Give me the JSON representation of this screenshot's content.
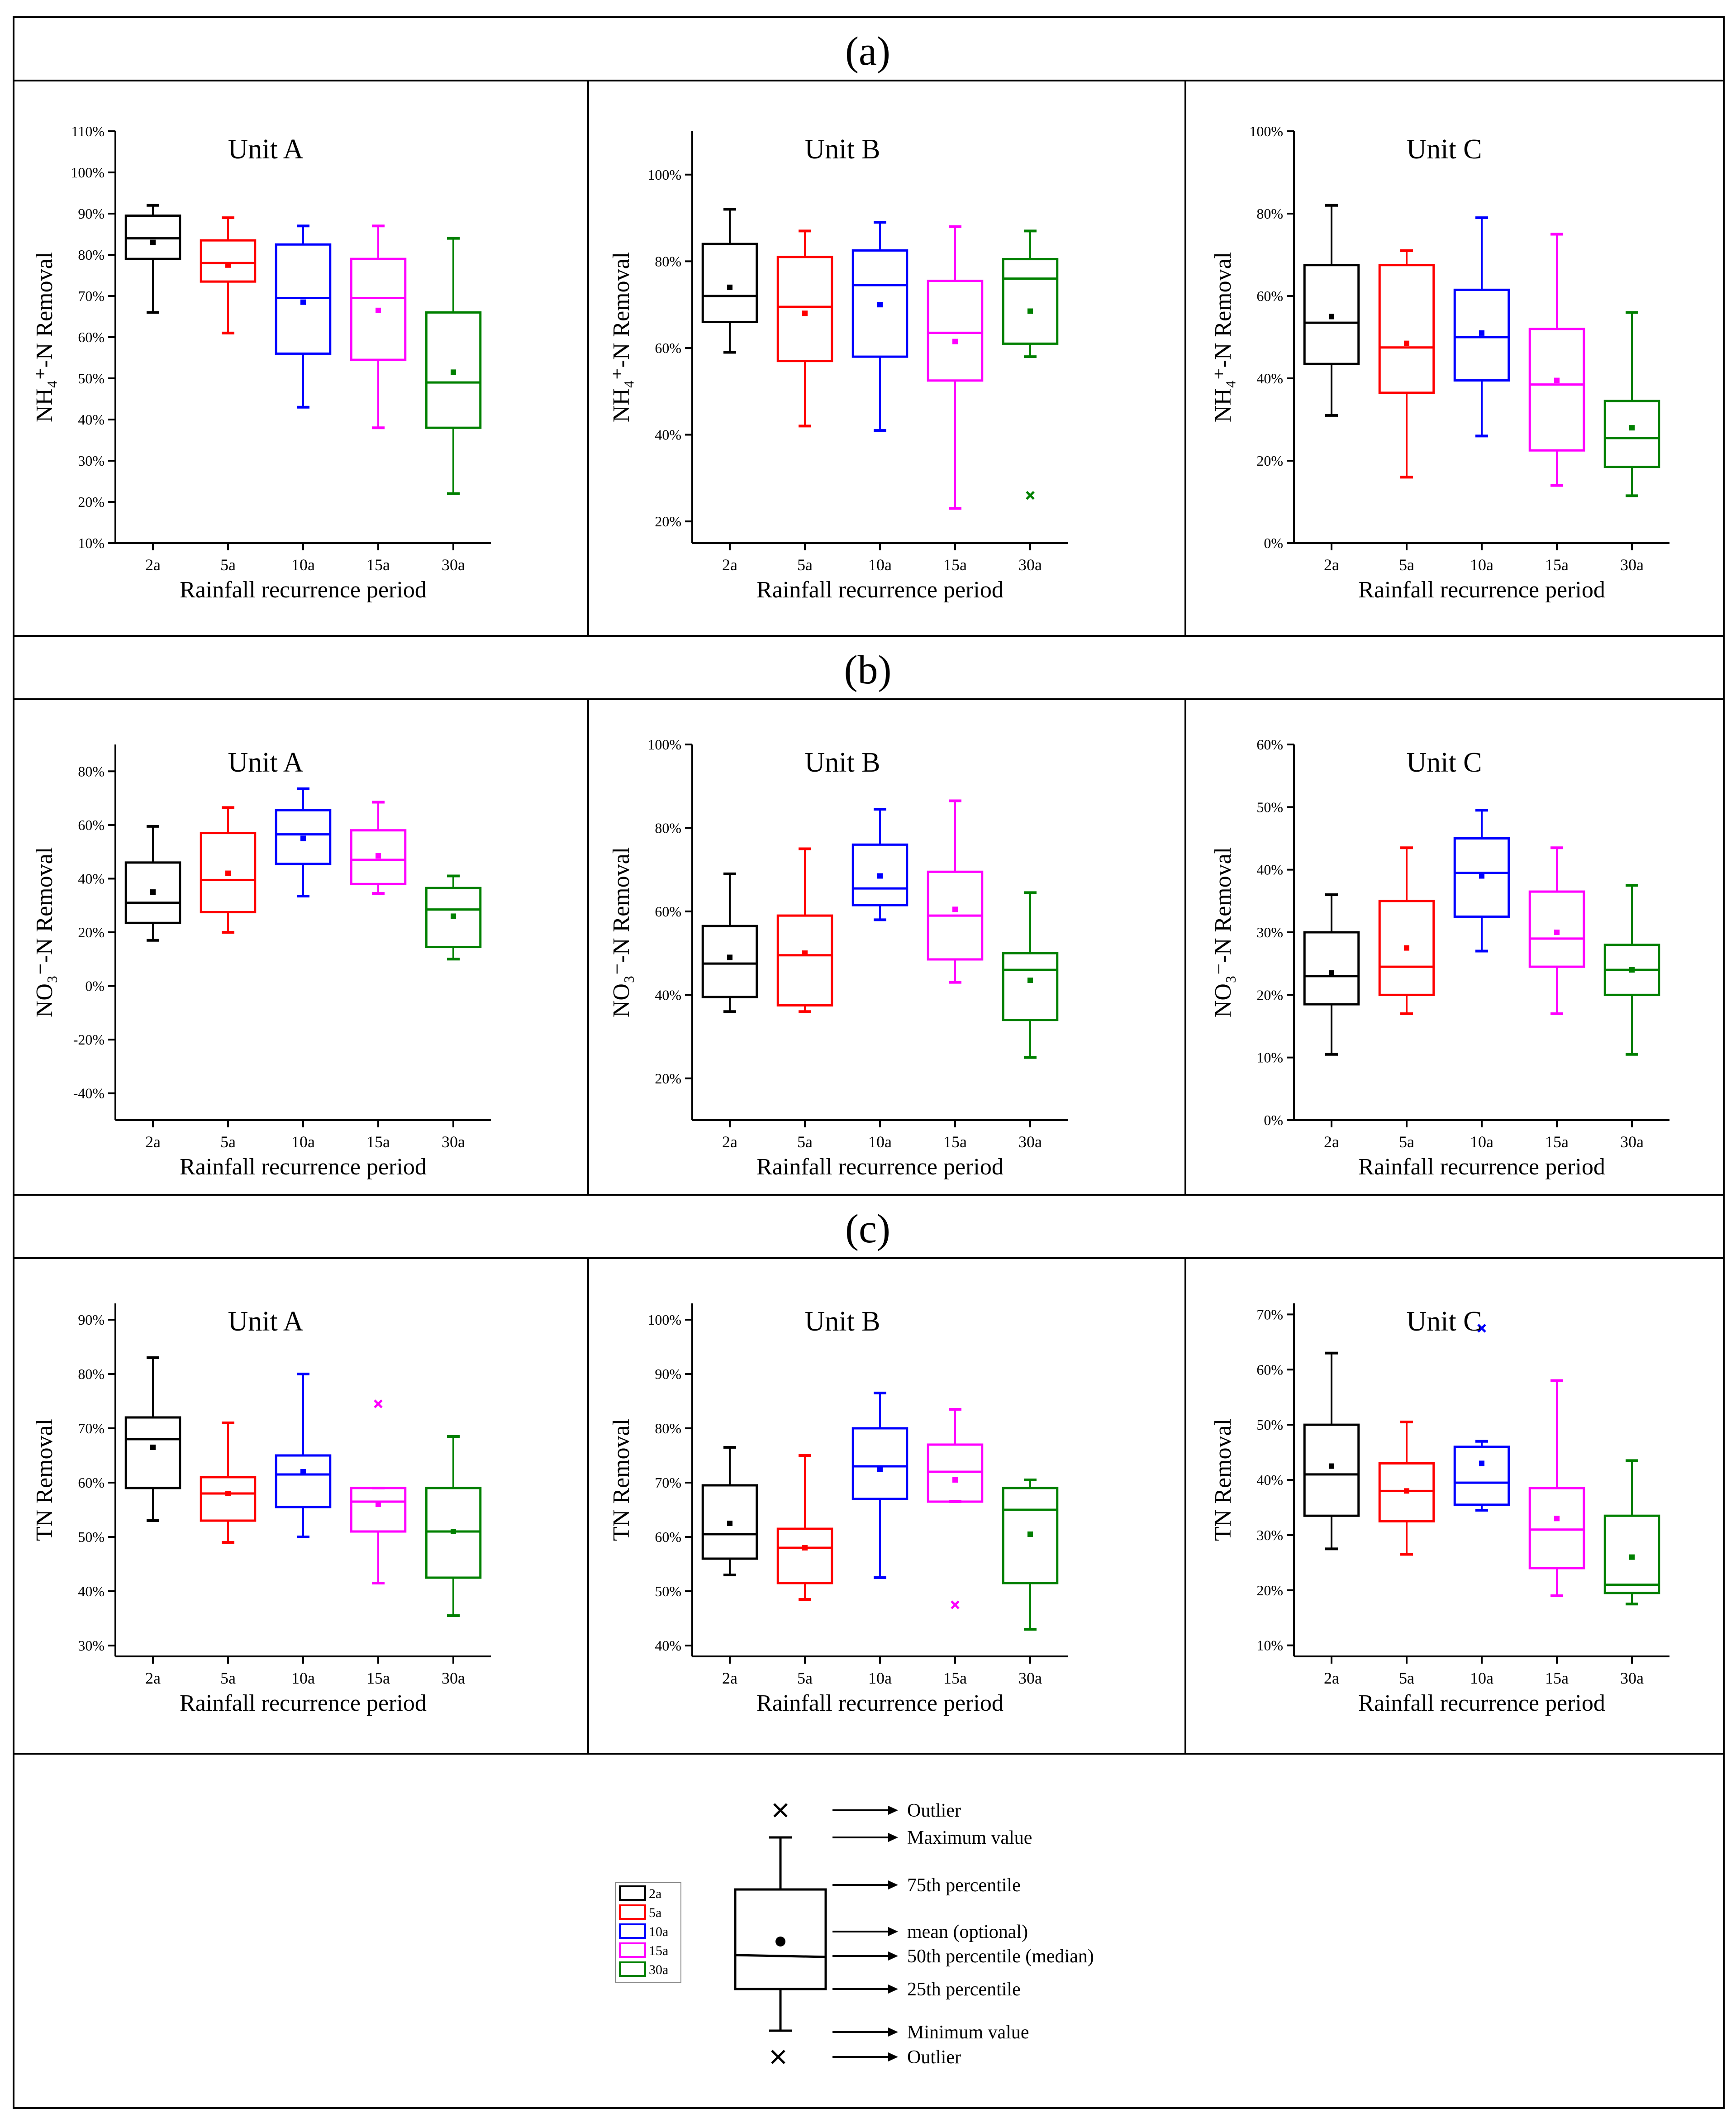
{
  "sections": [
    {
      "label": "(a)"
    },
    {
      "label": "(b)"
    },
    {
      "label": "(c)"
    }
  ],
  "chart_data": [
    {
      "type": "box",
      "title": "Unit A",
      "ylabel": "NH₄⁺-N Removal",
      "xlabel": "Rainfall recurrence period",
      "ylim": [
        10,
        110
      ],
      "yticks": [
        10,
        20,
        30,
        40,
        50,
        60,
        70,
        80,
        90,
        100,
        110
      ],
      "unit": "%",
      "categories": [
        "2a",
        "5a",
        "10a",
        "15a",
        "30a"
      ],
      "series": [
        {
          "name": "2a",
          "color": "#000000",
          "q1": 79,
          "median": 84,
          "q3": 89.5,
          "whisker_low": 66,
          "whisker_high": 92,
          "mean": 83,
          "outliers": []
        },
        {
          "name": "5a",
          "color": "#ff0000",
          "q1": 73.5,
          "median": 78,
          "q3": 83.5,
          "whisker_low": 61,
          "whisker_high": 89,
          "mean": 77.5,
          "outliers": []
        },
        {
          "name": "10a",
          "color": "#0000ff",
          "q1": 56,
          "median": 69.5,
          "q3": 82.5,
          "whisker_low": 43,
          "whisker_high": 87,
          "mean": 68.5,
          "outliers": []
        },
        {
          "name": "15a",
          "color": "#ff00ff",
          "q1": 54.5,
          "median": 69.5,
          "q3": 79,
          "whisker_low": 38,
          "whisker_high": 87,
          "mean": 66.5,
          "outliers": []
        },
        {
          "name": "30a",
          "color": "#008000",
          "q1": 38,
          "median": 49,
          "q3": 66,
          "whisker_low": 22,
          "whisker_high": 84,
          "mean": 51.5,
          "outliers": []
        }
      ]
    },
    {
      "type": "box",
      "title": "Unit B",
      "ylabel": "NH₄⁺-N Removal",
      "xlabel": "Rainfall recurrence period",
      "ylim": [
        15,
        110
      ],
      "yticks": [
        20,
        40,
        60,
        80,
        100
      ],
      "unit": "%",
      "categories": [
        "2a",
        "5a",
        "10a",
        "15a",
        "30a"
      ],
      "series": [
        {
          "name": "2a",
          "color": "#000000",
          "q1": 66,
          "median": 72,
          "q3": 84,
          "whisker_low": 59,
          "whisker_high": 92,
          "mean": 74,
          "outliers": []
        },
        {
          "name": "5a",
          "color": "#ff0000",
          "q1": 57,
          "median": 69.5,
          "q3": 81,
          "whisker_low": 42,
          "whisker_high": 87,
          "mean": 68,
          "outliers": []
        },
        {
          "name": "10a",
          "color": "#0000ff",
          "q1": 58,
          "median": 74.5,
          "q3": 82.5,
          "whisker_low": 41,
          "whisker_high": 89,
          "mean": 70,
          "outliers": []
        },
        {
          "name": "15a",
          "color": "#ff00ff",
          "q1": 52.5,
          "median": 63.5,
          "q3": 75.5,
          "whisker_low": 23,
          "whisker_high": 88,
          "mean": 61.5,
          "outliers": []
        },
        {
          "name": "30a",
          "color": "#008000",
          "q1": 61,
          "median": 76,
          "q3": 80.5,
          "whisker_low": 58,
          "whisker_high": 87,
          "mean": 68.5,
          "outliers": [
            26
          ]
        }
      ]
    },
    {
      "type": "box",
      "title": "Unit C",
      "ylabel": "NH₄⁺-N Removal",
      "xlabel": "Rainfall recurrence period",
      "ylim": [
        0,
        100
      ],
      "yticks": [
        0,
        20,
        40,
        60,
        80,
        100
      ],
      "unit": "%",
      "categories": [
        "2a",
        "5a",
        "10a",
        "15a",
        "30a"
      ],
      "series": [
        {
          "name": "2a",
          "color": "#000000",
          "q1": 43.5,
          "median": 53.5,
          "q3": 67.5,
          "whisker_low": 31,
          "whisker_high": 82,
          "mean": 55,
          "outliers": []
        },
        {
          "name": "5a",
          "color": "#ff0000",
          "q1": 36.5,
          "median": 47.5,
          "q3": 67.5,
          "whisker_low": 16,
          "whisker_high": 71,
          "mean": 48.5,
          "outliers": []
        },
        {
          "name": "10a",
          "color": "#0000ff",
          "q1": 39.5,
          "median": 50,
          "q3": 61.5,
          "whisker_low": 26,
          "whisker_high": 79,
          "mean": 51,
          "outliers": []
        },
        {
          "name": "15a",
          "color": "#ff00ff",
          "q1": 22.5,
          "median": 38.5,
          "q3": 52,
          "whisker_low": 14,
          "whisker_high": 75,
          "mean": 39.5,
          "outliers": []
        },
        {
          "name": "30a",
          "color": "#008000",
          "q1": 18.5,
          "median": 25.5,
          "q3": 34.5,
          "whisker_low": 11.5,
          "whisker_high": 56,
          "mean": 28,
          "outliers": []
        }
      ]
    },
    {
      "type": "box",
      "title": "Unit A",
      "ylabel": "NO₃⁻-N Removal",
      "xlabel": "Rainfall recurrence period",
      "ylim": [
        -50,
        90
      ],
      "yticks": [
        -40,
        -20,
        0,
        20,
        40,
        60,
        80
      ],
      "unit": "%",
      "categories": [
        "2a",
        "5a",
        "10a",
        "15a",
        "30a"
      ],
      "series": [
        {
          "name": "2a",
          "color": "#000000",
          "q1": 23.5,
          "median": 31,
          "q3": 46,
          "whisker_low": 17,
          "whisker_high": 59.5,
          "mean": 35,
          "outliers": []
        },
        {
          "name": "5a",
          "color": "#ff0000",
          "q1": 27.5,
          "median": 39.5,
          "q3": 57,
          "whisker_low": 20,
          "whisker_high": 66.5,
          "mean": 42,
          "outliers": []
        },
        {
          "name": "10a",
          "color": "#0000ff",
          "q1": 45.5,
          "median": 56.5,
          "q3": 65.5,
          "whisker_low": 33.5,
          "whisker_high": 73.5,
          "mean": 55,
          "outliers": []
        },
        {
          "name": "15a",
          "color": "#ff00ff",
          "q1": 38,
          "median": 47,
          "q3": 58,
          "whisker_low": 34.5,
          "whisker_high": 68.5,
          "mean": 48.5,
          "outliers": []
        },
        {
          "name": "30a",
          "color": "#008000",
          "q1": 14.5,
          "median": 28.5,
          "q3": 36.5,
          "whisker_low": 10,
          "whisker_high": 41,
          "mean": 26,
          "outliers": []
        }
      ]
    },
    {
      "type": "box",
      "title": "Unit B",
      "ylabel": "NO₃⁻-N Removal",
      "xlabel": "Rainfall recurrence period",
      "ylim": [
        10,
        100
      ],
      "yticks": [
        20,
        40,
        60,
        80,
        100
      ],
      "unit": "%",
      "categories": [
        "2a",
        "5a",
        "10a",
        "15a",
        "30a"
      ],
      "series": [
        {
          "name": "2a",
          "color": "#000000",
          "q1": 39.5,
          "median": 47.5,
          "q3": 56.5,
          "whisker_low": 36,
          "whisker_high": 69,
          "mean": 49,
          "outliers": []
        },
        {
          "name": "5a",
          "color": "#ff0000",
          "q1": 37.5,
          "median": 49.5,
          "q3": 59,
          "whisker_low": 36,
          "whisker_high": 75,
          "mean": 50,
          "outliers": []
        },
        {
          "name": "10a",
          "color": "#0000ff",
          "q1": 61.5,
          "median": 65.5,
          "q3": 76,
          "whisker_low": 58,
          "whisker_high": 84.5,
          "mean": 68.5,
          "outliers": []
        },
        {
          "name": "15a",
          "color": "#ff00ff",
          "q1": 48.5,
          "median": 59,
          "q3": 69.5,
          "whisker_low": 43,
          "whisker_high": 86.5,
          "mean": 60.5,
          "outliers": []
        },
        {
          "name": "30a",
          "color": "#008000",
          "q1": 34,
          "median": 46,
          "q3": 50,
          "whisker_low": 25,
          "whisker_high": 64.5,
          "mean": 43.5,
          "outliers": []
        }
      ]
    },
    {
      "type": "box",
      "title": "Unit C",
      "ylabel": "NO₃⁻-N Removal",
      "xlabel": "Rainfall recurrence period",
      "ylim": [
        0,
        60
      ],
      "yticks": [
        0,
        10,
        20,
        30,
        40,
        50,
        60
      ],
      "unit": "%",
      "categories": [
        "2a",
        "5a",
        "10a",
        "15a",
        "30a"
      ],
      "series": [
        {
          "name": "2a",
          "color": "#000000",
          "q1": 18.5,
          "median": 23,
          "q3": 30,
          "whisker_low": 10.5,
          "whisker_high": 36,
          "mean": 23.5,
          "outliers": []
        },
        {
          "name": "5a",
          "color": "#ff0000",
          "q1": 20,
          "median": 24.5,
          "q3": 35,
          "whisker_low": 17,
          "whisker_high": 43.5,
          "mean": 27.5,
          "outliers": []
        },
        {
          "name": "10a",
          "color": "#0000ff",
          "q1": 32.5,
          "median": 39.5,
          "q3": 45,
          "whisker_low": 27,
          "whisker_high": 49.5,
          "mean": 39,
          "outliers": []
        },
        {
          "name": "15a",
          "color": "#ff00ff",
          "q1": 24.5,
          "median": 29,
          "q3": 36.5,
          "whisker_low": 17,
          "whisker_high": 43.5,
          "mean": 30,
          "outliers": []
        },
        {
          "name": "30a",
          "color": "#008000",
          "q1": 20,
          "median": 24,
          "q3": 28,
          "whisker_low": 10.5,
          "whisker_high": 37.5,
          "mean": 24,
          "outliers": []
        }
      ]
    },
    {
      "type": "box",
      "title": "Unit A",
      "ylabel": "TN Removal",
      "xlabel": "Rainfall recurrence period",
      "ylim": [
        28,
        93
      ],
      "yticks": [
        30,
        40,
        50,
        60,
        70,
        80,
        90
      ],
      "unit": "%",
      "categories": [
        "2a",
        "5a",
        "10a",
        "15a",
        "30a"
      ],
      "series": [
        {
          "name": "2a",
          "color": "#000000",
          "q1": 59,
          "median": 68,
          "q3": 72,
          "whisker_low": 53,
          "whisker_high": 83,
          "mean": 66.5,
          "outliers": []
        },
        {
          "name": "5a",
          "color": "#ff0000",
          "q1": 53,
          "median": 58,
          "q3": 61,
          "whisker_low": 49,
          "whisker_high": 71,
          "mean": 58,
          "outliers": []
        },
        {
          "name": "10a",
          "color": "#0000ff",
          "q1": 55.5,
          "median": 61.5,
          "q3": 65,
          "whisker_low": 50,
          "whisker_high": 80,
          "mean": 62,
          "outliers": []
        },
        {
          "name": "15a",
          "color": "#ff00ff",
          "q1": 51,
          "median": 56.5,
          "q3": 59,
          "whisker_low": 41.5,
          "whisker_high": 59,
          "mean": 56,
          "outliers": [
            74.5
          ]
        },
        {
          "name": "30a",
          "color": "#008000",
          "q1": 42.5,
          "median": 51,
          "q3": 59,
          "whisker_low": 35.5,
          "whisker_high": 68.5,
          "mean": 51,
          "outliers": []
        }
      ]
    },
    {
      "type": "box",
      "title": "Unit B",
      "ylabel": "TN Removal",
      "xlabel": "Rainfall recurrence period",
      "ylim": [
        38,
        103
      ],
      "yticks": [
        40,
        50,
        60,
        70,
        80,
        90,
        100
      ],
      "unit": "%",
      "categories": [
        "2a",
        "5a",
        "10a",
        "15a",
        "30a"
      ],
      "series": [
        {
          "name": "2a",
          "color": "#000000",
          "q1": 56,
          "median": 60.5,
          "q3": 69.5,
          "whisker_low": 53,
          "whisker_high": 76.5,
          "mean": 62.5,
          "outliers": []
        },
        {
          "name": "5a",
          "color": "#ff0000",
          "q1": 51.5,
          "median": 58,
          "q3": 61.5,
          "whisker_low": 48.5,
          "whisker_high": 75,
          "mean": 58,
          "outliers": []
        },
        {
          "name": "10a",
          "color": "#0000ff",
          "q1": 67,
          "median": 73,
          "q3": 80,
          "whisker_low": 52.5,
          "whisker_high": 86.5,
          "mean": 72.5,
          "outliers": []
        },
        {
          "name": "15a",
          "color": "#ff00ff",
          "q1": 66.5,
          "median": 72,
          "q3": 77,
          "whisker_low": 66.5,
          "whisker_high": 83.5,
          "mean": 70.5,
          "outliers": [
            47.5
          ]
        },
        {
          "name": "30a",
          "color": "#008000",
          "q1": 51.5,
          "median": 65,
          "q3": 69,
          "whisker_low": 43,
          "whisker_high": 70.5,
          "mean": 60.5,
          "outliers": []
        }
      ]
    },
    {
      "type": "box",
      "title": "Unit C",
      "ylabel": "TN Removal",
      "xlabel": "Rainfall recurrence period",
      "ylim": [
        8,
        72
      ],
      "yticks": [
        10,
        20,
        30,
        40,
        50,
        60,
        70
      ],
      "unit": "%",
      "categories": [
        "2a",
        "5a",
        "10a",
        "15a",
        "30a"
      ],
      "series": [
        {
          "name": "2a",
          "color": "#000000",
          "q1": 33.5,
          "median": 41,
          "q3": 50,
          "whisker_low": 27.5,
          "whisker_high": 63,
          "mean": 42.5,
          "outliers": []
        },
        {
          "name": "5a",
          "color": "#ff0000",
          "q1": 32.5,
          "median": 38,
          "q3": 43,
          "whisker_low": 26.5,
          "whisker_high": 50.5,
          "mean": 38,
          "outliers": []
        },
        {
          "name": "10a",
          "color": "#0000ff",
          "q1": 35.5,
          "median": 39.5,
          "q3": 46,
          "whisker_low": 34.5,
          "whisker_high": 47,
          "mean": 43,
          "outliers": [
            67.5
          ]
        },
        {
          "name": "15a",
          "color": "#ff00ff",
          "q1": 24,
          "median": 31,
          "q3": 38.5,
          "whisker_low": 19,
          "whisker_high": 58,
          "mean": 33,
          "outliers": []
        },
        {
          "name": "30a",
          "color": "#008000",
          "q1": 19.5,
          "median": 21,
          "q3": 33.5,
          "whisker_low": 17.5,
          "whisker_high": 43.5,
          "mean": 26,
          "outliers": []
        }
      ]
    }
  ],
  "legend": {
    "series": [
      {
        "name": "2a",
        "color": "#000000"
      },
      {
        "name": "5a",
        "color": "#ff0000"
      },
      {
        "name": "10a",
        "color": "#0000ff"
      },
      {
        "name": "15a",
        "color": "#ff00ff"
      },
      {
        "name": "30a",
        "color": "#008000"
      }
    ],
    "annotations": {
      "outlier_top": "Outlier",
      "maximum": "Maximum value",
      "p75": "75th percentile",
      "mean": "mean (optional)",
      "median": "50th percentile (median)",
      "p25": "25th percentile",
      "minimum": "Minimum value",
      "outlier_bottom": "Outlier"
    }
  }
}
